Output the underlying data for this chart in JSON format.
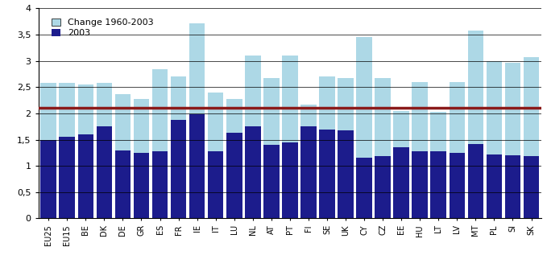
{
  "categories": [
    "EU25",
    "EU15",
    "BE",
    "DK",
    "DE",
    "GR",
    "ES",
    "FR",
    "IE",
    "IT",
    "LU",
    "NL",
    "AT",
    "PT",
    "FI",
    "SE",
    "UK",
    "CY",
    "CZ",
    "EE",
    "HU",
    "LT",
    "LV",
    "MT",
    "PL",
    "SI",
    "SK"
  ],
  "val_2003": [
    1.5,
    1.55,
    1.6,
    1.75,
    1.3,
    1.25,
    1.28,
    1.88,
    1.98,
    1.28,
    1.63,
    1.75,
    1.4,
    1.45,
    1.75,
    1.7,
    1.68,
    1.15,
    1.18,
    1.35,
    1.28,
    1.28,
    1.25,
    1.42,
    1.22,
    1.2,
    1.18
  ],
  "val_total": [
    2.58,
    2.58,
    2.55,
    2.58,
    2.37,
    2.27,
    2.84,
    2.7,
    3.72,
    2.4,
    2.28,
    3.1,
    2.67,
    3.1,
    2.17,
    2.7,
    2.68,
    3.46,
    2.68,
    2.05,
    2.6,
    2.03,
    2.6,
    3.58,
    3.0,
    2.96,
    3.07
  ],
  "color_2003": "#1c1c8c",
  "color_change": "#add8e6",
  "ref_line": 2.1,
  "ref_line_color": "#8b1a1a",
  "ylim": [
    0,
    4.0
  ],
  "yticks": [
    0,
    0.5,
    1.0,
    1.5,
    2.0,
    2.5,
    3.0,
    3.5,
    4.0
  ],
  "ytick_labels": [
    "0",
    "0,5",
    "1",
    "1,5",
    "2",
    "2,5",
    "3",
    "3,5",
    "4"
  ],
  "legend_change": "Change 1960-2003",
  "legend_2003": "2003",
  "bar_width": 0.85
}
